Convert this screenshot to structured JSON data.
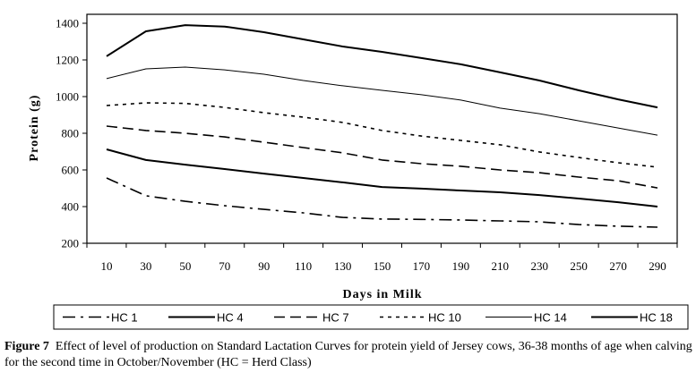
{
  "chart_data": {
    "type": "line",
    "title": "",
    "xlabel": "Days in Milk",
    "ylabel": "Protein (g)",
    "x": [
      10,
      30,
      50,
      70,
      90,
      110,
      130,
      150,
      170,
      190,
      210,
      230,
      250,
      270,
      290
    ],
    "x_tick_labels": [
      "10",
      "30",
      "50",
      "70",
      "90",
      "110",
      "130",
      "150",
      "170",
      "190",
      "210",
      "230",
      "250",
      "270",
      "290"
    ],
    "ylim": [
      200,
      1400
    ],
    "y_ticks": [
      200,
      400,
      600,
      800,
      1000,
      1200,
      1400
    ],
    "grid": false,
    "legend_position": "bottom",
    "series": [
      {
        "name": "HC 1",
        "style": "dash-dot",
        "weight": "normal",
        "values": [
          556,
          459,
          429,
          405,
          385,
          366,
          341,
          332,
          330,
          327,
          322,
          317,
          302,
          293,
          288
        ]
      },
      {
        "name": "HC 4",
        "style": "solid",
        "weight": "bold",
        "values": [
          712,
          654,
          629,
          605,
          580,
          556,
          532,
          507,
          498,
          488,
          478,
          463,
          444,
          424,
          400
        ]
      },
      {
        "name": "HC 7",
        "style": "long-dash",
        "weight": "normal",
        "values": [
          839,
          815,
          800,
          780,
          751,
          722,
          693,
          654,
          634,
          620,
          600,
          585,
          561,
          541,
          502
        ]
      },
      {
        "name": "HC 10",
        "style": "short-dash",
        "weight": "normal",
        "values": [
          951,
          966,
          963,
          941,
          912,
          888,
          859,
          815,
          785,
          761,
          737,
          698,
          668,
          639,
          615
        ]
      },
      {
        "name": "HC 14",
        "style": "solid",
        "weight": "thin",
        "values": [
          1098,
          1151,
          1161,
          1146,
          1122,
          1088,
          1059,
          1034,
          1010,
          981,
          937,
          907,
          868,
          829,
          790
        ]
      },
      {
        "name": "HC 18",
        "style": "solid",
        "weight": "bold",
        "values": [
          1220,
          1356,
          1390,
          1382,
          1351,
          1312,
          1273,
          1244,
          1210,
          1176,
          1132,
          1088,
          1034,
          985,
          941
        ]
      }
    ]
  },
  "caption": {
    "label": "Figure 7",
    "text": "Effect of level of production on Standard Lactation Curves for protein yield of Jersey cows, 36-38 months of age when calving for the second time in October/November (HC = Herd Class)"
  }
}
